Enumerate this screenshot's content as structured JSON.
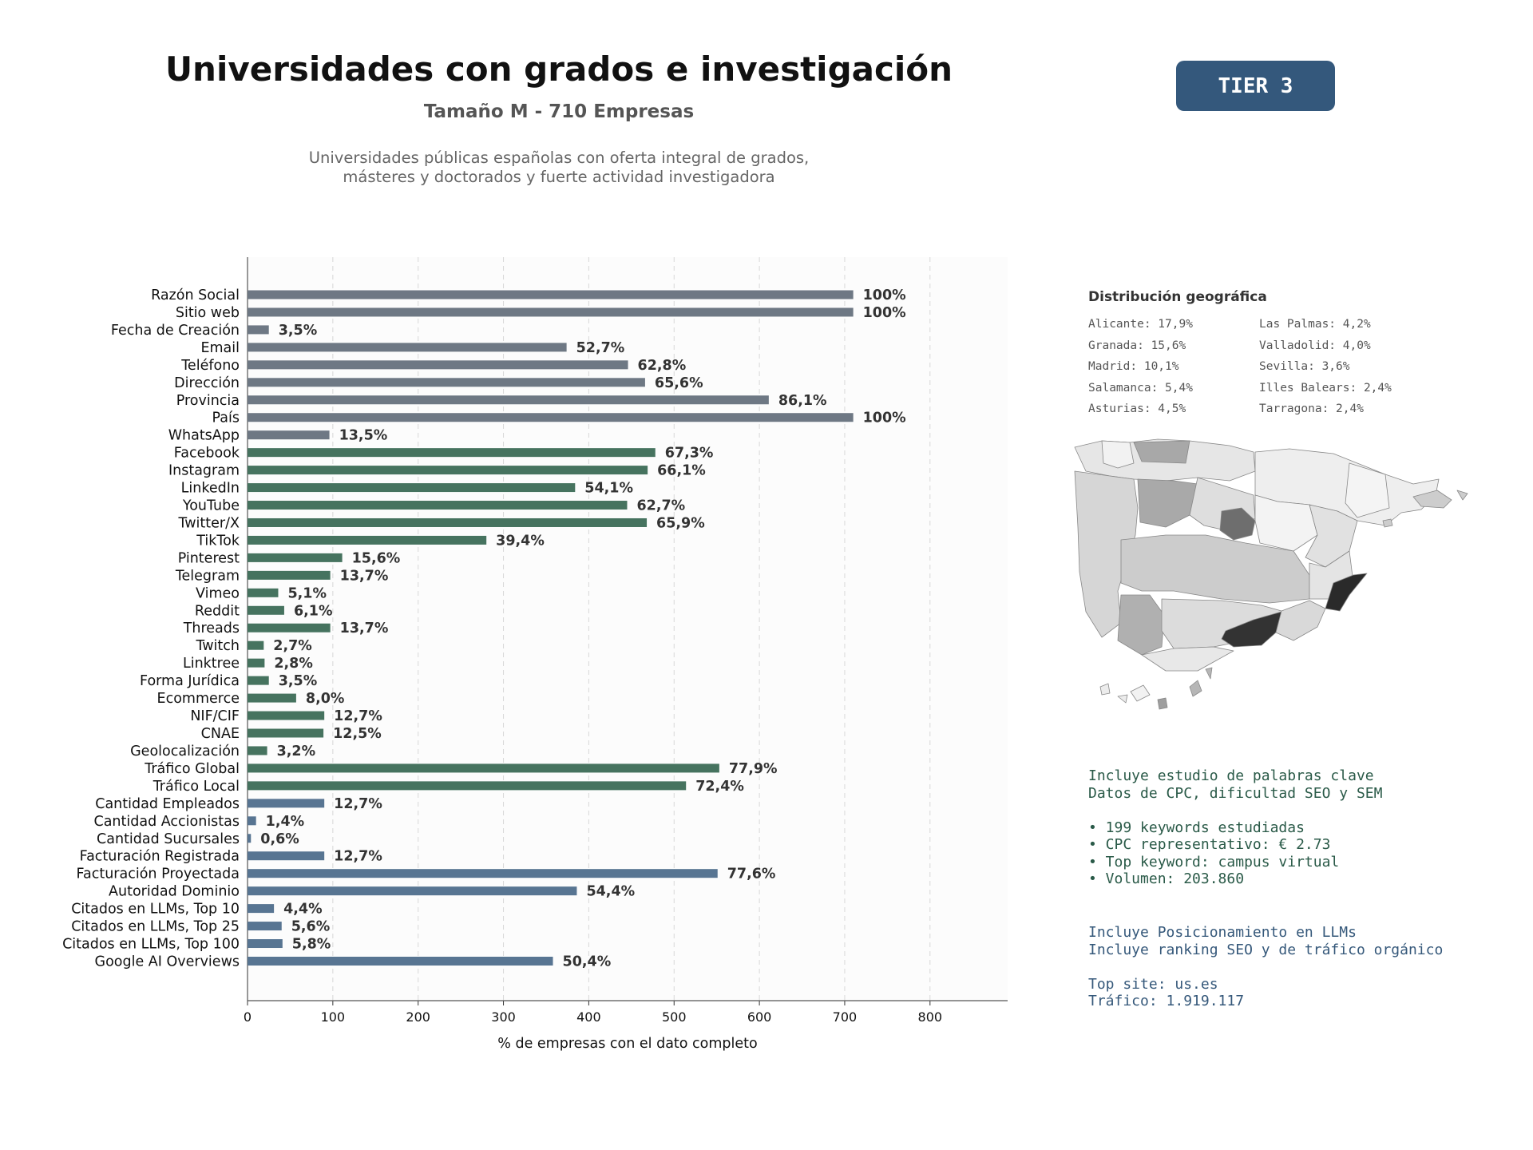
{
  "header": {
    "title": "Universidades con grados e investigación",
    "subtitle": "Tamaño M - 710 Empresas",
    "description": "Universidades públicas españolas con oferta integral de grados,\nmásteres y doctorados y fuerte actividad investigadora",
    "tier_label": "TIER 3"
  },
  "colors": {
    "gray_bar": "#6e7884",
    "green_bar": "#46735f",
    "blue_bar": "#587592",
    "tier_badge": "#34587c",
    "keyword_text": "#2a5a48",
    "llm_text": "#35587a"
  },
  "chart_data": {
    "type": "bar",
    "orientation": "horizontal",
    "xlabel": "% de empresas con el dato completo",
    "ylabel": "",
    "xlim": [
      0,
      890
    ],
    "xticks": [
      0,
      100,
      200,
      300,
      400,
      500,
      600,
      700,
      800
    ],
    "grid": "vertical dashed",
    "categories": [
      "Razón Social",
      "Sitio web",
      "Fecha de Creación",
      "Email",
      "Teléfono",
      "Dirección",
      "Provincia",
      "País",
      "WhatsApp",
      "Facebook",
      "Instagram",
      "LinkedIn",
      "YouTube",
      "Twitter/X",
      "TikTok",
      "Pinterest",
      "Telegram",
      "Vimeo",
      "Reddit",
      "Threads",
      "Twitch",
      "Linktree",
      "Forma Jurídica",
      "Ecommerce",
      "NIF/CIF",
      "CNAE",
      "Geolocalización",
      "Tráfico Global",
      "Tráfico Local",
      "Cantidad Empleados",
      "Cantidad Accionistas",
      "Cantidad Sucursales",
      "Facturación Registrada",
      "Facturación Proyectada",
      "Autoridad Dominio",
      "Citados en LLMs, Top 10",
      "Citados en LLMs, Top 25",
      "Citados en LLMs, Top 100",
      "Google AI Overviews"
    ],
    "values": [
      710,
      710,
      25,
      374,
      446,
      466,
      611,
      710,
      96,
      478,
      469,
      384,
      445,
      468,
      280,
      111,
      97,
      36,
      43,
      97,
      19,
      20,
      25,
      57,
      90,
      89,
      23,
      553,
      514,
      90,
      10,
      4,
      90,
      551,
      386,
      31,
      40,
      41,
      358
    ],
    "labels": [
      "100%",
      "100%",
      "3,5%",
      "52,7%",
      "62,8%",
      "65,6%",
      "86,1%",
      "100%",
      "13,5%",
      "67,3%",
      "66,1%",
      "54,1%",
      "62,7%",
      "65,9%",
      "39,4%",
      "15,6%",
      "13,7%",
      "5,1%",
      "6,1%",
      "13,7%",
      "2,7%",
      "2,8%",
      "3,5%",
      "8,0%",
      "12,7%",
      "12,5%",
      "3,2%",
      "77,9%",
      "72,4%",
      "12,7%",
      "1,4%",
      "0,6%",
      "12,7%",
      "77,6%",
      "54,4%",
      "4,4%",
      "5,6%",
      "5,8%",
      "50,4%"
    ],
    "bar_colors": [
      "gray",
      "gray",
      "gray",
      "gray",
      "gray",
      "gray",
      "gray",
      "gray",
      "gray",
      "green",
      "green",
      "green",
      "green",
      "green",
      "green",
      "green",
      "green",
      "green",
      "green",
      "green",
      "green",
      "green",
      "green",
      "green",
      "green",
      "green",
      "green",
      "green",
      "green",
      "blue",
      "blue",
      "blue",
      "blue",
      "blue",
      "blue",
      "blue",
      "blue",
      "blue",
      "blue"
    ]
  },
  "geo": {
    "title": "Distribución geográfica",
    "items": [
      "Alicante: 17,9%",
      "Las Palmas: 4,2%",
      "Granada: 15,6%",
      "Valladolid: 4,0%",
      "Madrid: 10,1%",
      "Sevilla: 3,6%",
      "Salamanca: 5,4%",
      "Illes Balears: 2,4%",
      "Asturias: 4,5%",
      "Tarragona: 2,4%"
    ]
  },
  "keywords": {
    "line1": "Incluye estudio de palabras clave",
    "line2": "Datos de CPC, dificultad SEO y SEM",
    "bullet1": "• 199 keywords estudiadas",
    "bullet2": "• CPC representativo: € 2.73",
    "bullet3": "• Top keyword: campus virtual",
    "bullet4": "• Volumen: 203.860"
  },
  "llm": {
    "line1": "Incluye Posicionamiento en LLMs",
    "line2": "Incluye ranking SEO y de tráfico orgánico",
    "top_site": "Top site: us.es",
    "traffic": "Tráfico: 1.919.117"
  }
}
